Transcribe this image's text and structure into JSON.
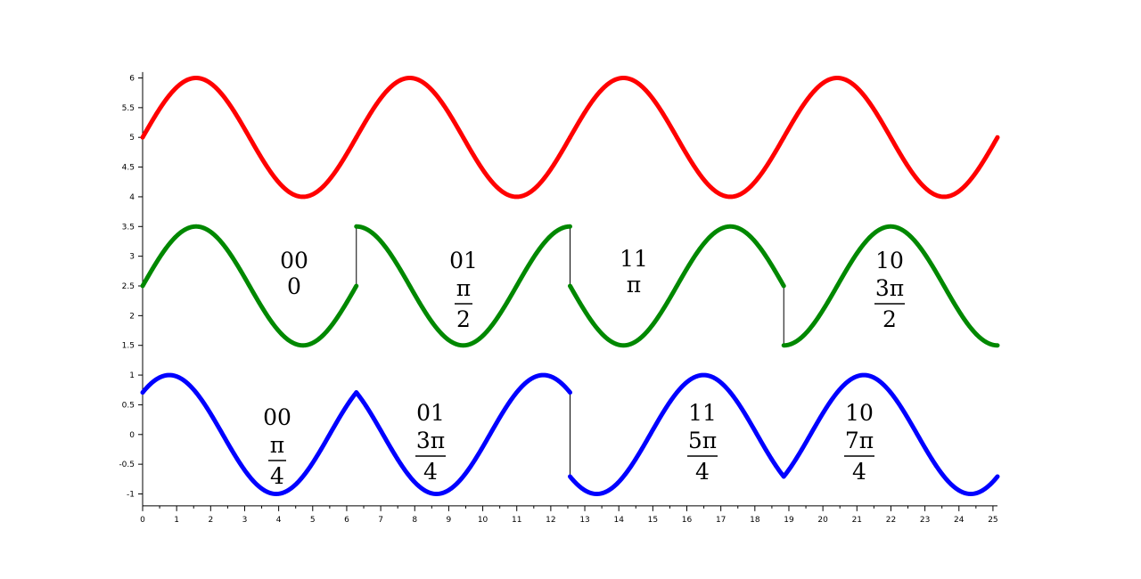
{
  "chart_data": {
    "type": "line",
    "title": "",
    "xlabel": "",
    "ylabel": "",
    "xlim": [
      0,
      25.133
    ],
    "ylim": [
      -1.2,
      6.1
    ],
    "grid": false,
    "legend": "none",
    "x_ticks": [
      "0",
      "1",
      "2",
      "3",
      "4",
      "5",
      "6",
      "7",
      "8",
      "9",
      "10",
      "11",
      "12",
      "13",
      "14",
      "15",
      "16",
      "17",
      "18",
      "19",
      "20",
      "21",
      "22",
      "23",
      "24",
      "25"
    ],
    "y_ticks": [
      "-1",
      "-0.5",
      "0",
      "0.5",
      "1",
      "1.5",
      "2",
      "2.5",
      "3",
      "3.5",
      "4",
      "4.5",
      "5",
      "5.5",
      "6"
    ],
    "segment_boundaries": [
      0,
      6.2832,
      12.5664,
      18.8496,
      25.1327
    ],
    "series": [
      {
        "color": "#ff0000",
        "kind": "continuous",
        "offset": 5,
        "phases": [
          0,
          0,
          0,
          0
        ]
      },
      {
        "color": "#008800",
        "kind": "bpsk",
        "offset": 2.5,
        "phases": [
          0,
          1.5708,
          3.1416,
          4.7124
        ],
        "bits": [
          "00",
          "01",
          "11",
          "10"
        ],
        "phase_labels": [
          {
            "num": "0",
            "den": ""
          },
          {
            "num": "π",
            "den": "2"
          },
          {
            "num": "π",
            "den": ""
          },
          {
            "num": "3π",
            "den": "2"
          }
        ]
      },
      {
        "color": "#0000ff",
        "kind": "qpsk",
        "offset": 0,
        "phases": [
          0.7854,
          2.3562,
          3.927,
          5.4978
        ],
        "bits": [
          "00",
          "01",
          "11",
          "10"
        ],
        "phase_labels": [
          {
            "num": "π",
            "den": "4"
          },
          {
            "num": "3π",
            "den": "4"
          },
          {
            "num": "5π",
            "den": "4"
          },
          {
            "num": "7π",
            "den": "4"
          }
        ]
      }
    ]
  }
}
